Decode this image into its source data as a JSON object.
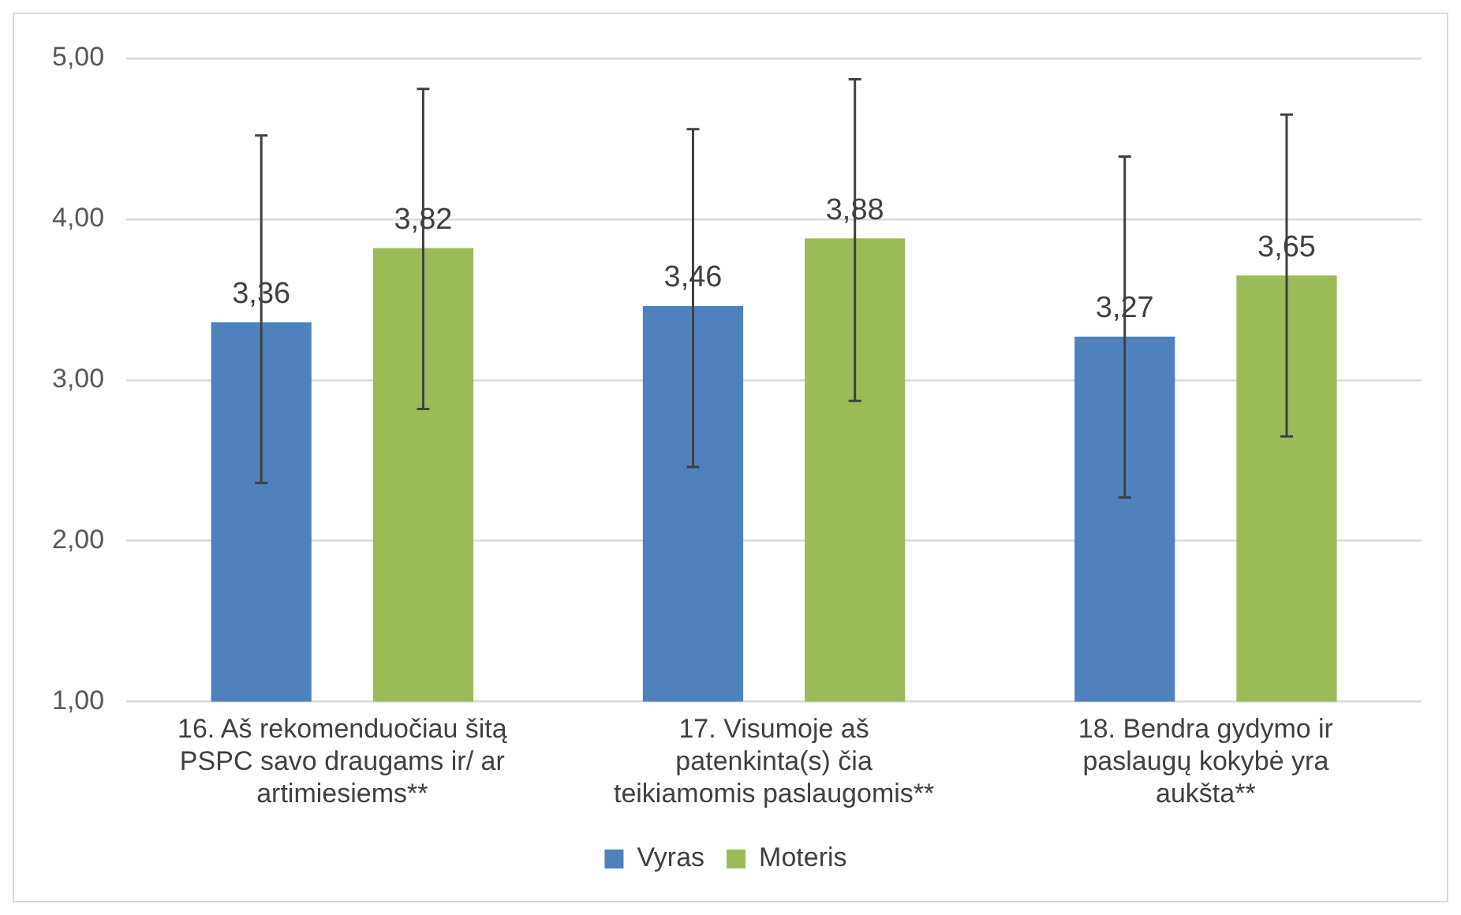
{
  "chart_data": {
    "type": "bar",
    "categories": [
      "16. Aš rekomenduočiau šitą PSPC savo draugams ir/ ar artimiesiems**",
      "17. Visumoje aš patenkinta(s) čia teikiamomis paslaugomis**",
      "18. Bendra gydymo ir paslaugų kokybė yra aukšta**"
    ],
    "series": [
      {
        "name": "Vyras",
        "color": "#4f81bd",
        "values": [
          3.36,
          3.46,
          3.27
        ],
        "value_labels": [
          "3,36",
          "3,46",
          "3,27"
        ],
        "errors": [
          [
            2.36,
            4.52
          ],
          [
            2.46,
            4.56
          ],
          [
            2.27,
            4.39
          ]
        ]
      },
      {
        "name": "Moteris",
        "color": "#9bbb59",
        "values": [
          3.82,
          3.88,
          3.65
        ],
        "value_labels": [
          "3,82",
          "3,88",
          "3,65"
        ],
        "errors": [
          [
            2.82,
            4.81
          ],
          [
            2.87,
            4.87
          ],
          [
            2.65,
            4.65
          ]
        ]
      }
    ],
    "ylim": [
      1,
      5
    ],
    "yticks": [
      {
        "value": 1,
        "label": "1,00"
      },
      {
        "value": 2,
        "label": "2,00"
      },
      {
        "value": 3,
        "label": "3,00"
      },
      {
        "value": 4,
        "label": "4,00"
      },
      {
        "value": 5,
        "label": "5,00"
      }
    ],
    "grid": "y",
    "legend": "bottom"
  }
}
